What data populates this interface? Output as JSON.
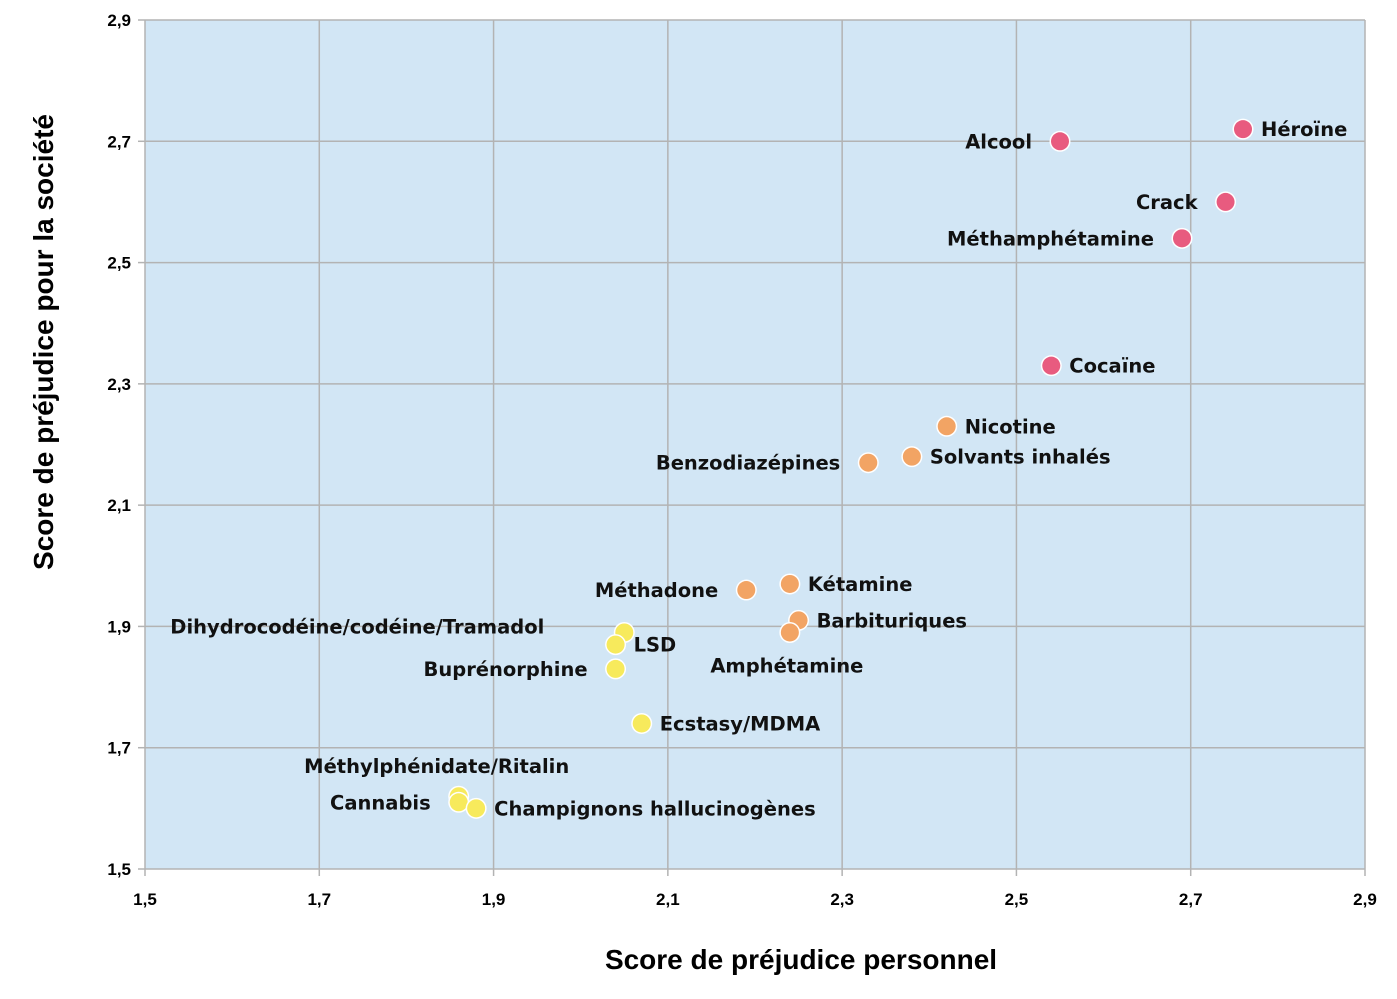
{
  "chart_data": {
    "type": "scatter",
    "title": "",
    "xlabel": "Score de préjudice personnel",
    "ylabel": "Score de préjudice pour la société",
    "xlim": [
      1.5,
      2.9
    ],
    "ylim": [
      1.5,
      2.9
    ],
    "x_ticks": [
      "1,5",
      "1,7",
      "1,9",
      "2,1",
      "2,3",
      "2,5",
      "2,7",
      "2,9"
    ],
    "y_ticks": [
      "1,5",
      "1,7",
      "1,9",
      "2,1",
      "2,3",
      "2,5",
      "2,7",
      "2,9"
    ],
    "grid": true,
    "background_color": "#d2e6f5",
    "colors": {
      "high": "#e85b7f",
      "medium": "#f2a464",
      "low": "#f7ea5c"
    },
    "points": [
      {
        "label": "Héroïne",
        "x": 2.76,
        "y": 2.72,
        "group": "high",
        "label_side": "right"
      },
      {
        "label": "Alcool",
        "x": 2.55,
        "y": 2.7,
        "group": "high",
        "label_side": "left"
      },
      {
        "label": "Crack",
        "x": 2.74,
        "y": 2.6,
        "group": "high",
        "label_side": "left"
      },
      {
        "label": "Méthamphétamine",
        "x": 2.69,
        "y": 2.54,
        "group": "high",
        "label_side": "left"
      },
      {
        "label": "Cocaïne",
        "x": 2.54,
        "y": 2.33,
        "group": "high",
        "label_side": "right"
      },
      {
        "label": "Nicotine",
        "x": 2.42,
        "y": 2.23,
        "group": "medium",
        "label_side": "right"
      },
      {
        "label": "Solvants inhalés",
        "x": 2.38,
        "y": 2.18,
        "group": "medium",
        "label_side": "right"
      },
      {
        "label": "Benzodiazépines",
        "x": 2.33,
        "y": 2.17,
        "group": "medium",
        "label_side": "left"
      },
      {
        "label": "Kétamine",
        "x": 2.24,
        "y": 1.97,
        "group": "medium",
        "label_side": "right"
      },
      {
        "label": "Méthadone",
        "x": 2.19,
        "y": 1.96,
        "group": "medium",
        "label_side": "left"
      },
      {
        "label": "Barbituriques",
        "x": 2.25,
        "y": 1.91,
        "group": "medium",
        "label_side": "right"
      },
      {
        "label": "Amphétamine",
        "x": 2.24,
        "y": 1.89,
        "group": "medium",
        "label_side": "below"
      },
      {
        "label": "Dihydrocodéine/codéine/Tramadol",
        "x": 2.05,
        "y": 1.89,
        "group": "low",
        "label_side": "left-far"
      },
      {
        "label": "LSD",
        "x": 2.04,
        "y": 1.87,
        "group": "low",
        "label_side": "right"
      },
      {
        "label": "Buprénorphine",
        "x": 2.04,
        "y": 1.83,
        "group": "low",
        "label_side": "left"
      },
      {
        "label": "Ecstasy/MDMA",
        "x": 2.07,
        "y": 1.74,
        "group": "low",
        "label_side": "right"
      },
      {
        "label": "Méthylphénidate/Ritalin",
        "x": 1.86,
        "y": 1.62,
        "group": "low",
        "label_side": "above"
      },
      {
        "label": "Cannabis",
        "x": 1.86,
        "y": 1.61,
        "group": "low",
        "label_side": "left"
      },
      {
        "label": "Champignons hallucinogènes",
        "x": 1.88,
        "y": 1.6,
        "group": "low",
        "label_side": "right"
      }
    ]
  }
}
